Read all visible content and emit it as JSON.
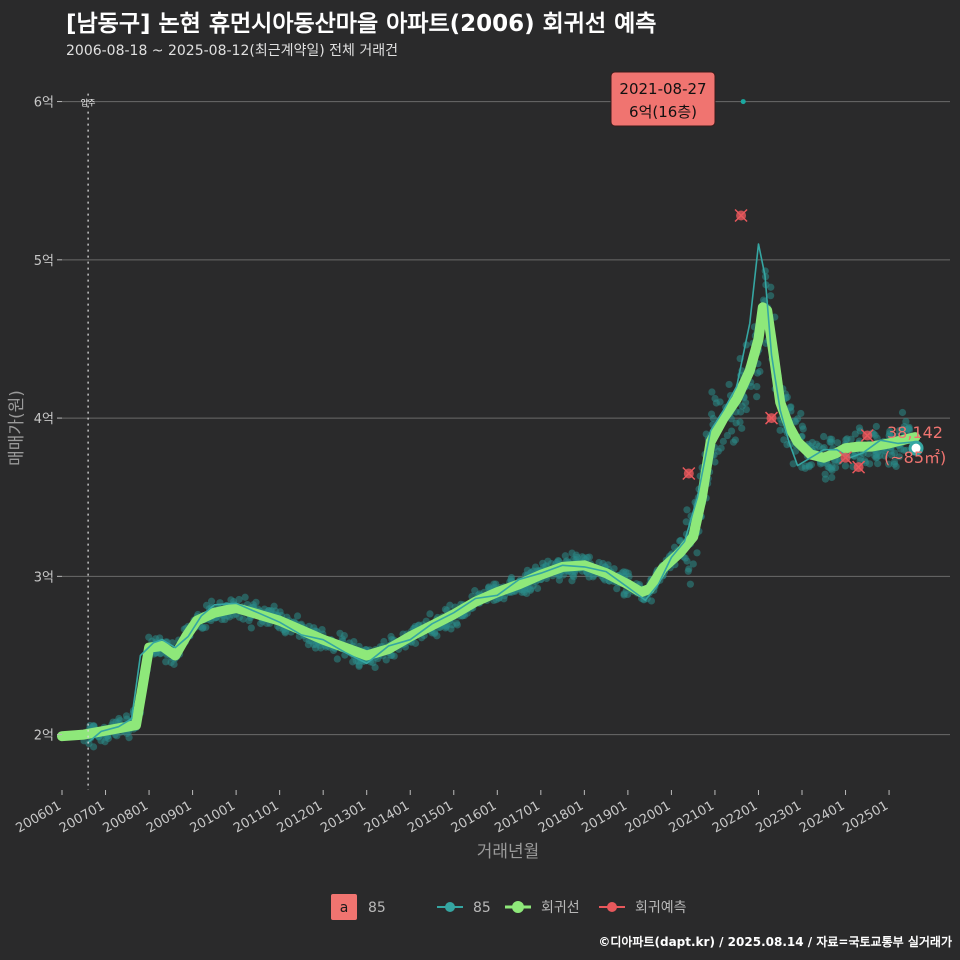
{
  "title": "[남동구] 논현 휴먼시아동산마을 아파트(2006) 회귀선 예측",
  "subtitle": "2006-08-18 ~ 2025-08-12(최근계약일) 전체 거래건",
  "credit": "©디아파트(dapt.kr) / 2025.08.14 / 자료=국토교통부 실거래가",
  "colors": {
    "background": "#2a2a2b",
    "scatter": "#2a8a88",
    "trend": "#35a6a2",
    "regression": "#8ee87a",
    "prediction": "#e8585c",
    "callout": "#f07470",
    "grid": "#6a6a6a"
  },
  "chart_data": {
    "type": "scatter",
    "title": "[남동구] 논현 휴먼시아동산마을 아파트(2006) 회귀선 예측",
    "xlabel": "거래년월",
    "ylabel": "매매가(원)",
    "xlim": [
      2006.0,
      2026.4
    ],
    "ylim": [
      1.65,
      6.25
    ],
    "x_ticks": [
      {
        "label": "200601",
        "x": 2006.0
      },
      {
        "label": "200701",
        "x": 2007.0
      },
      {
        "label": "200801",
        "x": 2008.0
      },
      {
        "label": "200901",
        "x": 2009.0
      },
      {
        "label": "201001",
        "x": 2010.0
      },
      {
        "label": "201101",
        "x": 2011.0
      },
      {
        "label": "201201",
        "x": 2012.0
      },
      {
        "label": "201301",
        "x": 2013.0
      },
      {
        "label": "201401",
        "x": 2014.0
      },
      {
        "label": "201501",
        "x": 2015.0
      },
      {
        "label": "201601",
        "x": 2016.0
      },
      {
        "label": "201701",
        "x": 2017.0
      },
      {
        "label": "201801",
        "x": 2018.0
      },
      {
        "label": "201901",
        "x": 2019.0
      },
      {
        "label": "202001",
        "x": 2020.0
      },
      {
        "label": "202101",
        "x": 2021.0
      },
      {
        "label": "202201",
        "x": 2022.0
      },
      {
        "label": "202301",
        "x": 2023.0
      },
      {
        "label": "202401",
        "x": 2024.0
      },
      {
        "label": "202501",
        "x": 2025.0
      }
    ],
    "y_ticks": [
      {
        "label": "2억",
        "y": 2
      },
      {
        "label": "3억",
        "y": 3
      },
      {
        "label": "4억",
        "y": 4
      },
      {
        "label": "5억",
        "y": 5
      },
      {
        "label": "6억",
        "y": 6
      }
    ],
    "move_in": {
      "label": "입주",
      "x": 2006.6
    },
    "series": [
      {
        "name": "회귀선",
        "points": [
          [
            2006.0,
            1.99
          ],
          [
            2006.5,
            2.0
          ],
          [
            2006.9,
            2.02
          ],
          [
            2007.3,
            2.04
          ],
          [
            2007.7,
            2.06
          ],
          [
            2007.85,
            2.3
          ],
          [
            2008.0,
            2.55
          ],
          [
            2008.3,
            2.56
          ],
          [
            2008.6,
            2.5
          ],
          [
            2008.85,
            2.62
          ],
          [
            2009.1,
            2.72
          ],
          [
            2009.5,
            2.77
          ],
          [
            2010.0,
            2.8
          ],
          [
            2010.5,
            2.76
          ],
          [
            2011.0,
            2.72
          ],
          [
            2011.5,
            2.66
          ],
          [
            2012.0,
            2.6
          ],
          [
            2012.5,
            2.55
          ],
          [
            2013.0,
            2.5
          ],
          [
            2013.5,
            2.54
          ],
          [
            2014.0,
            2.62
          ],
          [
            2014.5,
            2.69
          ],
          [
            2015.0,
            2.76
          ],
          [
            2015.5,
            2.84
          ],
          [
            2016.0,
            2.9
          ],
          [
            2016.5,
            2.95
          ],
          [
            2017.0,
            3.01
          ],
          [
            2017.5,
            3.06
          ],
          [
            2018.0,
            3.07
          ],
          [
            2018.5,
            3.02
          ],
          [
            2019.0,
            2.95
          ],
          [
            2019.3,
            2.9
          ],
          [
            2019.5,
            2.92
          ],
          [
            2019.8,
            3.05
          ],
          [
            2020.2,
            3.15
          ],
          [
            2020.5,
            3.25
          ],
          [
            2020.7,
            3.5
          ],
          [
            2020.9,
            3.85
          ],
          [
            2021.2,
            4.0
          ],
          [
            2021.5,
            4.12
          ],
          [
            2021.8,
            4.3
          ],
          [
            2022.0,
            4.5
          ],
          [
            2022.1,
            4.7
          ],
          [
            2022.2,
            4.68
          ],
          [
            2022.35,
            4.4
          ],
          [
            2022.5,
            4.1
          ],
          [
            2022.7,
            3.95
          ],
          [
            2022.9,
            3.85
          ],
          [
            2023.2,
            3.77
          ],
          [
            2023.5,
            3.75
          ],
          [
            2023.8,
            3.78
          ],
          [
            2024.0,
            3.81
          ],
          [
            2024.3,
            3.82
          ],
          [
            2024.6,
            3.82
          ],
          [
            2025.0,
            3.84
          ],
          [
            2025.3,
            3.86
          ],
          [
            2025.6,
            3.88
          ]
        ]
      },
      {
        "name": "85",
        "points": [
          [
            2006.6,
            1.95
          ],
          [
            2006.9,
            2.02
          ],
          [
            2007.3,
            2.05
          ],
          [
            2007.6,
            2.1
          ],
          [
            2007.8,
            2.5
          ],
          [
            2008.1,
            2.58
          ],
          [
            2008.3,
            2.6
          ],
          [
            2008.6,
            2.55
          ],
          [
            2008.9,
            2.62
          ],
          [
            2009.2,
            2.75
          ],
          [
            2009.5,
            2.82
          ],
          [
            2010.0,
            2.83
          ],
          [
            2010.5,
            2.77
          ],
          [
            2011.0,
            2.71
          ],
          [
            2011.5,
            2.63
          ],
          [
            2012.0,
            2.6
          ],
          [
            2012.5,
            2.52
          ],
          [
            2013.0,
            2.45
          ],
          [
            2013.5,
            2.56
          ],
          [
            2014.0,
            2.6
          ],
          [
            2014.5,
            2.7
          ],
          [
            2015.0,
            2.77
          ],
          [
            2015.5,
            2.86
          ],
          [
            2016.0,
            2.88
          ],
          [
            2016.5,
            2.98
          ],
          [
            2017.0,
            3.02
          ],
          [
            2017.5,
            3.07
          ],
          [
            2018.0,
            3.06
          ],
          [
            2018.5,
            3.03
          ],
          [
            2019.0,
            2.93
          ],
          [
            2019.4,
            2.85
          ],
          [
            2019.7,
            2.95
          ],
          [
            2020.0,
            3.12
          ],
          [
            2020.3,
            3.22
          ],
          [
            2020.6,
            3.5
          ],
          [
            2020.9,
            3.92
          ],
          [
            2021.2,
            4.05
          ],
          [
            2021.5,
            4.2
          ],
          [
            2021.8,
            4.6
          ],
          [
            2022.0,
            5.1
          ],
          [
            2022.15,
            4.9
          ],
          [
            2022.3,
            4.4
          ],
          [
            2022.5,
            4.05
          ],
          [
            2022.7,
            3.85
          ],
          [
            2022.9,
            3.7
          ],
          [
            2023.2,
            3.75
          ],
          [
            2023.5,
            3.8
          ],
          [
            2023.8,
            3.8
          ],
          [
            2024.1,
            3.75
          ],
          [
            2024.4,
            3.78
          ],
          [
            2024.8,
            3.86
          ],
          [
            2025.2,
            3.84
          ],
          [
            2025.6,
            3.85
          ]
        ]
      },
      {
        "name": "회귀예측",
        "points": [
          [
            2020.4,
            3.65
          ],
          [
            2021.6,
            5.28
          ],
          [
            2022.3,
            4.0
          ],
          [
            2024.0,
            3.75
          ],
          [
            2024.3,
            3.69
          ],
          [
            2024.5,
            3.89
          ]
        ]
      }
    ],
    "highlight": {
      "date": "2021-08-27",
      "value_label": "6억(16층)",
      "x": 2021.65,
      "y": 6.0
    },
    "last_point": {
      "x": 2025.62,
      "y": 3.81,
      "value": "38,142",
      "area": "(~85㎡)"
    },
    "legend": {
      "box_label": "a",
      "box_text": "85",
      "items": [
        "85",
        "회귀선",
        "회귀예측"
      ]
    }
  }
}
